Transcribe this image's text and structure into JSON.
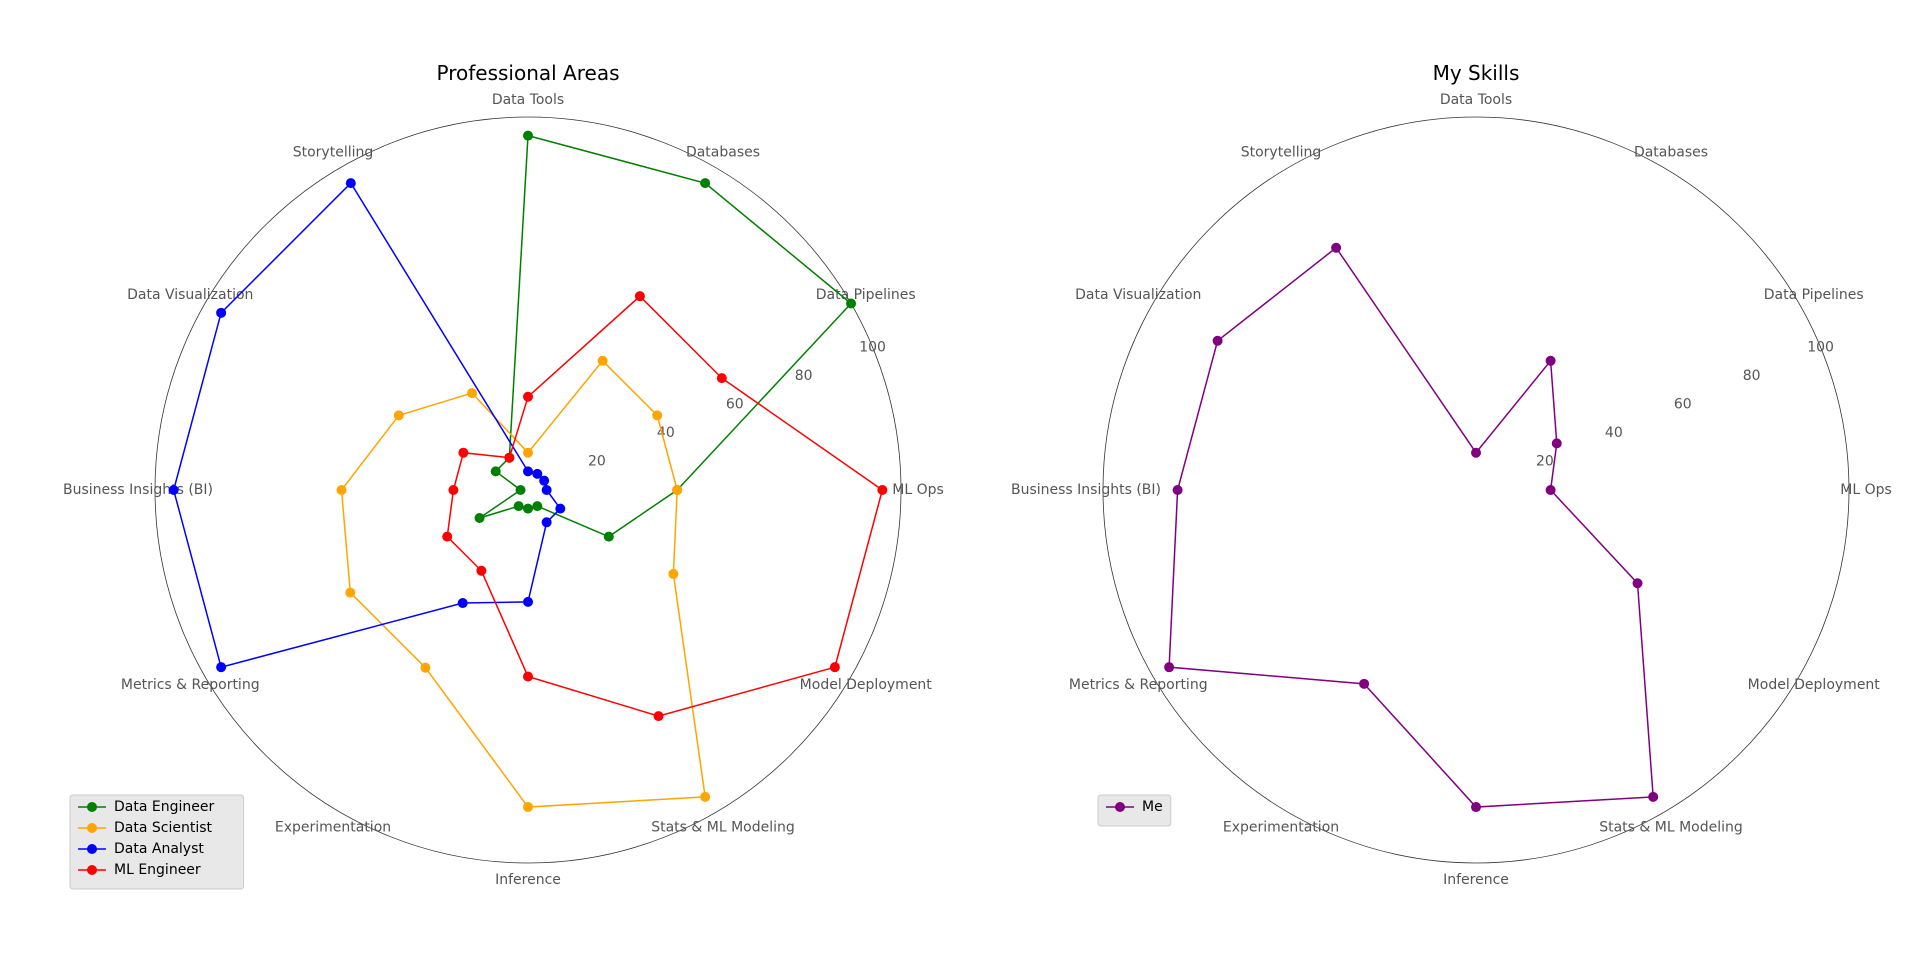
{
  "chart_data": [
    {
      "type": "radar",
      "title": "Professional Areas",
      "categories": [
        "ML Ops",
        "Data Pipelines",
        "Databases",
        "Data Tools",
        "Storytelling",
        "Data Visualization",
        "Business Insights (BI)",
        "Metrics & Reporting",
        "Experimentation",
        "Inference",
        "Stats & ML Modeling",
        "Model Deployment"
      ],
      "rlim": [
        0,
        100
      ],
      "rticks": [
        20,
        40,
        60,
        80,
        100
      ],
      "grid": false,
      "legend_position": "lower-left",
      "series": [
        {
          "name": "Data Engineer",
          "color": "#008000",
          "values": [
            40,
            100,
            95,
            95,
            10,
            10,
            2,
            15,
            5,
            5,
            5,
            25
          ]
        },
        {
          "name": "Data Scientist",
          "color": "#FFA500",
          "values": [
            40,
            40,
            40,
            10,
            30,
            40,
            50,
            55,
            55,
            85,
            95,
            45
          ]
        },
        {
          "name": "Data Analyst",
          "color": "#0000FF",
          "values": [
            5,
            5,
            5,
            5,
            95,
            95,
            95,
            95,
            35,
            30,
            10,
            10
          ]
        },
        {
          "name": "ML Engineer",
          "color": "#FF0000",
          "values": [
            95,
            60,
            60,
            25,
            10,
            20,
            20,
            25,
            25,
            50,
            70,
            95
          ]
        }
      ]
    },
    {
      "type": "radar",
      "title": "My Skills",
      "categories": [
        "ML Ops",
        "Data Pipelines",
        "Databases",
        "Data Tools",
        "Storytelling",
        "Data Visualization",
        "Business Insights (BI)",
        "Metrics & Reporting",
        "Experimentation",
        "Inference",
        "Stats & ML Modeling",
        "Model Deployment"
      ],
      "rlim": [
        0,
        100
      ],
      "rticks": [
        20,
        40,
        60,
        80,
        100
      ],
      "grid": false,
      "legend_position": "lower-left",
      "series": [
        {
          "name": "Me",
          "color": "#800080",
          "values": [
            20,
            25,
            40,
            10,
            75,
            80,
            80,
            95,
            60,
            85,
            95,
            50
          ]
        }
      ]
    }
  ]
}
